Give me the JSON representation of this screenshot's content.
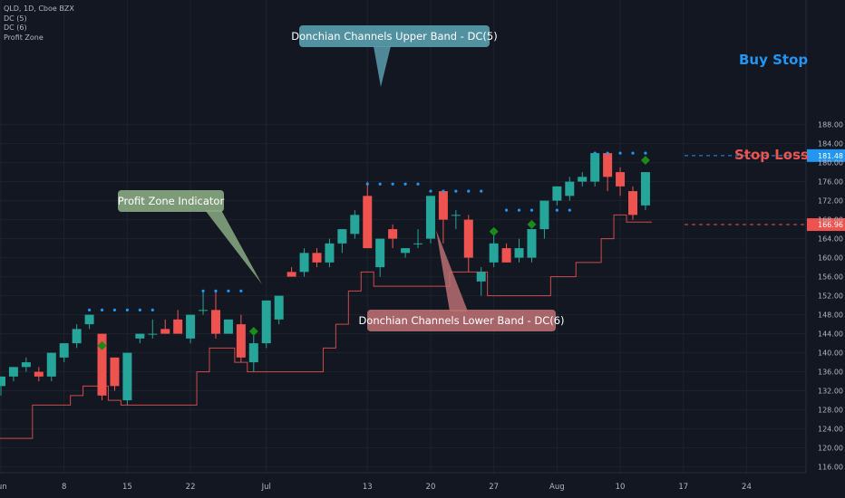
{
  "legend": {
    "symbol_line": "QLD, 1D, Cboe BZX",
    "dc5": "DC (5)",
    "dc6": "DC (6)",
    "profit_zone": "Profit Zone"
  },
  "annotations": {
    "upper_band": "Donchian Channels Upper Band - DC(5)",
    "lower_band": "Donchian Channels Lower Band - DC(6)",
    "profit_zone": "Profit Zone Indicator",
    "buy_stop": "Buy Stop",
    "stop_loss": "Stop Loss"
  },
  "colors": {
    "background": "#131722",
    "up": "#26a69a",
    "down": "#ef5350",
    "upper_band": "#2196f3",
    "lower_band": "#ef5350",
    "profit_zone": "#1b8a1b",
    "upper_callout": "#5a9eae",
    "lower_callout": "#b86e72",
    "profit_callout": "#8aaa82",
    "axis_text": "#b2b5be"
  },
  "chart_data": {
    "type": "candlestick",
    "y_range": [
      114,
      190
    ],
    "y_ticks": [
      116,
      120,
      124,
      128,
      132,
      136,
      140,
      144,
      148,
      152,
      156,
      160,
      164,
      168,
      172,
      176,
      180,
      184,
      188
    ],
    "x_ticks": [
      {
        "label": "Jun",
        "idx": 0
      },
      {
        "label": "8",
        "idx": 5
      },
      {
        "label": "15",
        "idx": 10
      },
      {
        "label": "22",
        "idx": 15
      },
      {
        "label": "Jul",
        "idx": 21
      },
      {
        "label": "13",
        "idx": 29
      },
      {
        "label": "20",
        "idx": 34
      },
      {
        "label": "27",
        "idx": 39
      },
      {
        "label": "Aug",
        "idx": 44
      },
      {
        "label": "10",
        "idx": 49
      },
      {
        "label": "17",
        "idx": 54
      },
      {
        "label": "24",
        "idx": 59
      }
    ],
    "price_labels": {
      "buy_stop": "181.48",
      "stop_loss": "166.96"
    },
    "candles": [
      {
        "o": 133,
        "h": 135,
        "l": 131,
        "c": 135
      },
      {
        "o": 135,
        "h": 137,
        "l": 134,
        "c": 137
      },
      {
        "o": 137,
        "h": 139,
        "l": 136,
        "c": 138
      },
      {
        "o": 136,
        "h": 137,
        "l": 134,
        "c": 135
      },
      {
        "o": 135,
        "h": 140,
        "l": 134,
        "c": 140
      },
      {
        "o": 139,
        "h": 142,
        "l": 138,
        "c": 142
      },
      {
        "o": 142,
        "h": 146,
        "l": 141,
        "c": 145
      },
      {
        "o": 146,
        "h": 148,
        "l": 145,
        "c": 148
      },
      {
        "o": 144,
        "h": 144,
        "l": 130,
        "c": 131
      },
      {
        "o": 139,
        "h": 139,
        "l": 132,
        "c": 133
      },
      {
        "o": 130,
        "h": 140,
        "l": 129,
        "c": 140
      },
      {
        "o": 143,
        "h": 144,
        "l": 142,
        "c": 144
      },
      {
        "o": 144,
        "h": 147,
        "l": 143,
        "c": 144
      },
      {
        "o": 145,
        "h": 147,
        "l": 144,
        "c": 144
      },
      {
        "o": 147,
        "h": 149,
        "l": 144,
        "c": 144
      },
      {
        "o": 143,
        "h": 148,
        "l": 142,
        "c": 148
      },
      {
        "o": 149,
        "h": 153,
        "l": 148,
        "c": 149
      },
      {
        "o": 149,
        "h": 153,
        "l": 143,
        "c": 144
      },
      {
        "o": 144,
        "h": 147,
        "l": 144,
        "c": 147
      },
      {
        "o": 146,
        "h": 148,
        "l": 138,
        "c": 139
      },
      {
        "o": 138,
        "h": 144,
        "l": 136,
        "c": 142
      },
      {
        "o": 142,
        "h": 151,
        "l": 141,
        "c": 151
      },
      {
        "o": 147,
        "h": 152,
        "l": 146,
        "c": 152
      },
      {
        "o": 157,
        "h": 158,
        "l": 156,
        "c": 156
      },
      {
        "o": 157,
        "h": 162,
        "l": 156,
        "c": 161
      },
      {
        "o": 161,
        "h": 162,
        "l": 158,
        "c": 159
      },
      {
        "o": 159,
        "h": 164,
        "l": 158,
        "c": 163
      },
      {
        "o": 163,
        "h": 166,
        "l": 161,
        "c": 166
      },
      {
        "o": 165,
        "h": 170,
        "l": 164,
        "c": 169
      },
      {
        "o": 173,
        "h": 176,
        "l": 162,
        "c": 162
      },
      {
        "o": 158,
        "h": 164,
        "l": 156,
        "c": 164
      },
      {
        "o": 166,
        "h": 167,
        "l": 162,
        "c": 164
      },
      {
        "o": 161,
        "h": 162,
        "l": 160,
        "c": 162
      },
      {
        "o": 163,
        "h": 166,
        "l": 162,
        "c": 163
      },
      {
        "o": 164,
        "h": 173,
        "l": 163,
        "c": 173
      },
      {
        "o": 174,
        "h": 174,
        "l": 163,
        "c": 168
      },
      {
        "o": 169,
        "h": 170,
        "l": 166,
        "c": 169
      },
      {
        "o": 168,
        "h": 169,
        "l": 157,
        "c": 160
      },
      {
        "o": 155,
        "h": 158,
        "l": 152,
        "c": 157
      },
      {
        "o": 159,
        "h": 165,
        "l": 158,
        "c": 163
      },
      {
        "o": 162,
        "h": 163,
        "l": 159,
        "c": 159
      },
      {
        "o": 160,
        "h": 164,
        "l": 159,
        "c": 162
      },
      {
        "o": 160,
        "h": 166,
        "l": 159,
        "c": 166
      },
      {
        "o": 166,
        "h": 172,
        "l": 164,
        "c": 172
      },
      {
        "o": 172,
        "h": 175,
        "l": 171,
        "c": 175
      },
      {
        "o": 173,
        "h": 177,
        "l": 172,
        "c": 176
      },
      {
        "o": 176,
        "h": 178,
        "l": 175,
        "c": 177
      },
      {
        "o": 176,
        "h": 182,
        "l": 175,
        "c": 182
      },
      {
        "o": 182,
        "h": 182,
        "l": 174,
        "c": 177
      },
      {
        "o": 178,
        "h": 179,
        "l": 173,
        "c": 175
      },
      {
        "o": 174,
        "h": 175,
        "l": 168,
        "c": 169
      },
      {
        "o": 171,
        "h": 178,
        "l": 170,
        "c": 178
      }
    ],
    "upper_band": [
      {
        "from": 7,
        "to": 12,
        "v": 149
      },
      {
        "from": 16,
        "to": 19,
        "v": 153
      },
      {
        "from": 29,
        "to": 33,
        "v": 175.5
      },
      {
        "from": 34,
        "to": 38,
        "v": 174
      },
      {
        "from": 40,
        "to": 42,
        "v": 170
      },
      {
        "from": 44,
        "to": 45,
        "v": 170
      },
      {
        "from": 47,
        "to": 51,
        "v": 182
      }
    ],
    "lower_band": [
      {
        "idx": 0,
        "v": 122
      },
      {
        "idx": 3,
        "v": 129
      },
      {
        "idx": 6,
        "v": 131
      },
      {
        "idx": 7,
        "v": 133
      },
      {
        "idx": 9,
        "v": 130
      },
      {
        "idx": 10,
        "v": 129
      },
      {
        "idx": 11,
        "v": 129
      },
      {
        "idx": 13,
        "v": 129
      },
      {
        "idx": 16,
        "v": 136
      },
      {
        "idx": 17,
        "v": 141
      },
      {
        "idx": 19,
        "v": 138
      },
      {
        "idx": 20,
        "v": 136
      },
      {
        "idx": 24,
        "v": 136
      },
      {
        "idx": 26,
        "v": 141
      },
      {
        "idx": 27,
        "v": 146
      },
      {
        "idx": 28,
        "v": 153
      },
      {
        "idx": 29,
        "v": 157
      },
      {
        "idx": 30,
        "v": 154
      },
      {
        "idx": 36,
        "v": 157
      },
      {
        "idx": 39,
        "v": 152
      },
      {
        "idx": 43,
        "v": 152
      },
      {
        "idx": 44,
        "v": 156
      },
      {
        "idx": 46,
        "v": 159
      },
      {
        "idx": 48,
        "v": 164
      },
      {
        "idx": 49,
        "v": 169
      },
      {
        "idx": 50,
        "v": 167.5
      },
      {
        "idx": 51,
        "v": 167.5
      }
    ],
    "profit_zone_markers": [
      {
        "idx": 8,
        "v": 141.5
      },
      {
        "idx": 20,
        "v": 144.5
      },
      {
        "idx": 39,
        "v": 165.5
      },
      {
        "idx": 42,
        "v": 167
      },
      {
        "idx": 51,
        "v": 180.5
      }
    ]
  }
}
